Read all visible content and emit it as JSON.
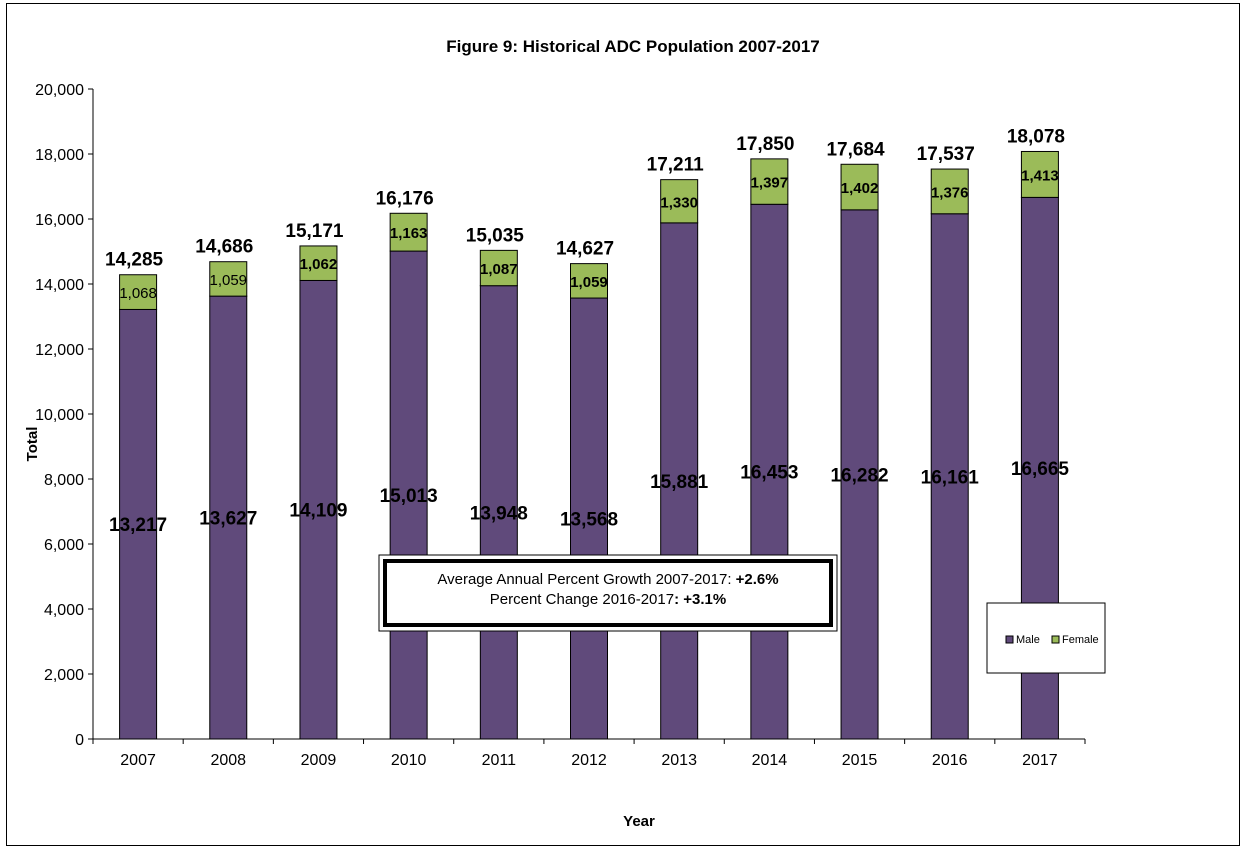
{
  "chart_data": {
    "type": "bar",
    "stacked": true,
    "title": "Figure 9: Historical ADC Population 2007-2017",
    "xlabel": "Year",
    "ylabel": "Total",
    "ylim": [
      0,
      20000
    ],
    "ytick_step": 2000,
    "ytick_labels": [
      "0",
      "2,000",
      "4,000",
      "6,000",
      "8,000",
      "10,000",
      "12,000",
      "14,000",
      "16,000",
      "18,000",
      "20,000"
    ],
    "categories": [
      "2007",
      "2008",
      "2009",
      "2010",
      "2011",
      "2012",
      "2013",
      "2014",
      "2015",
      "2016",
      "2017"
    ],
    "series": [
      {
        "name": "Male",
        "color": "#604a7b",
        "values": [
          13217,
          13627,
          14109,
          15013,
          13948,
          13568,
          15881,
          16453,
          16282,
          16161,
          16665
        ],
        "labels": [
          "13,217",
          "13,627",
          "14,109",
          "15,013",
          "13,948",
          "13,568",
          "15,881",
          "16,453",
          "16,282",
          "16,161",
          "16,665"
        ]
      },
      {
        "name": "Female",
        "color": "#9bbb59",
        "values": [
          1068,
          1059,
          1062,
          1163,
          1087,
          1059,
          1330,
          1397,
          1402,
          1376,
          1413
        ],
        "labels": [
          "1,068",
          "1,059",
          "1,062",
          "1,163",
          "1,087",
          "1,059",
          "1,330",
          "1,397",
          "1,402",
          "1,376",
          "1,413"
        ]
      }
    ],
    "totals": [
      14285,
      14686,
      15171,
      16176,
      15035,
      14627,
      17211,
      17850,
      17684,
      17537,
      18078
    ],
    "total_labels": [
      "14,285",
      "14,686",
      "15,171",
      "16,176",
      "15,035",
      "14,627",
      "17,211",
      "17,850",
      "17,684",
      "17,537",
      "18,078"
    ],
    "annotation": {
      "line1_text": "Average Annual Percent Growth 2007-2017: ",
      "line1_value": "+2.6%",
      "line2_text": "Percent Change 2016-2017",
      "line2_value": ": +3.1%"
    },
    "legend_position": "right",
    "grid": false
  }
}
